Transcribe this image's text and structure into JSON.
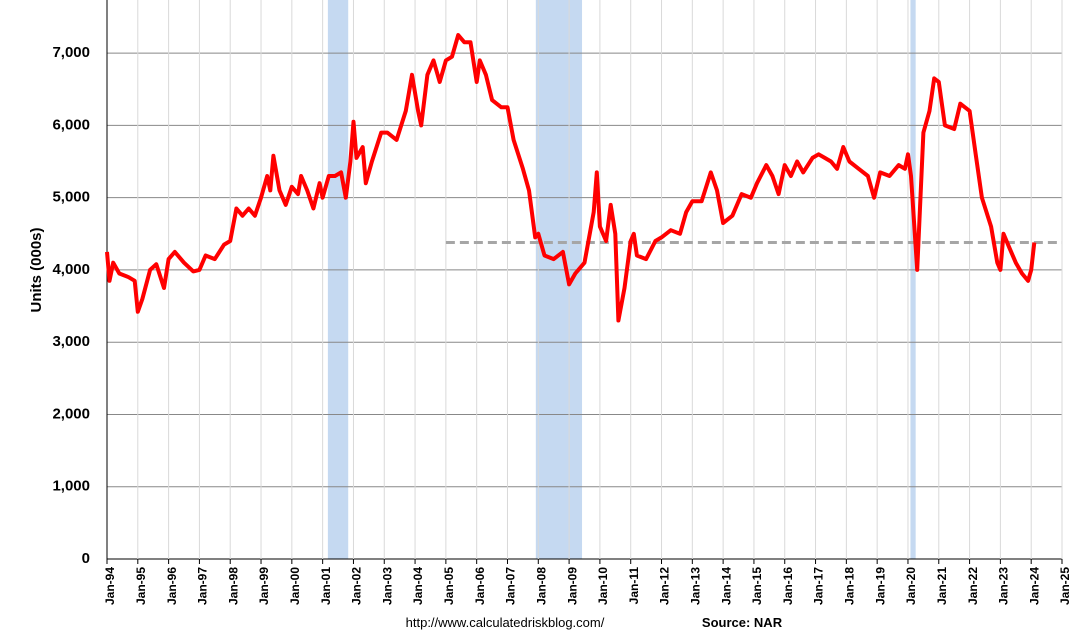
{
  "chart_data": {
    "type": "line",
    "y_label": "Units (000s)",
    "source_url": "http://www.calculatedriskblog.com/",
    "source": "Source: NAR",
    "color": "#ff0000",
    "x": [
      1994.0,
      1994.08,
      1994.2,
      1994.4,
      1994.7,
      1994.9,
      1995.0,
      1995.15,
      1995.4,
      1995.6,
      1995.85,
      1996.0,
      1996.2,
      1996.5,
      1996.8,
      1997.0,
      1997.2,
      1997.5,
      1997.8,
      1998.0,
      1998.2,
      1998.4,
      1998.6,
      1998.8,
      1999.0,
      1999.2,
      1999.3,
      1999.4,
      1999.6,
      1999.8,
      2000.0,
      2000.2,
      2000.3,
      2000.5,
      2000.7,
      2000.9,
      2001.0,
      2001.2,
      2001.4,
      2001.6,
      2001.75,
      2001.9,
      2002.0,
      2002.1,
      2002.3,
      2002.4,
      2002.6,
      2002.9,
      2003.1,
      2003.4,
      2003.7,
      2003.9,
      2004.1,
      2004.2,
      2004.4,
      2004.6,
      2004.8,
      2005.0,
      2005.2,
      2005.4,
      2005.6,
      2005.8,
      2006.0,
      2006.1,
      2006.3,
      2006.5,
      2006.8,
      2007.0,
      2007.2,
      2007.5,
      2007.7,
      2007.9,
      2008.0,
      2008.2,
      2008.5,
      2008.8,
      2009.0,
      2009.2,
      2009.5,
      2009.8,
      2009.9,
      2010.0,
      2010.2,
      2010.35,
      2010.5,
      2010.6,
      2010.8,
      2011.0,
      2011.1,
      2011.2,
      2011.5,
      2011.8,
      2012.0,
      2012.3,
      2012.6,
      2012.8,
      2013.0,
      2013.3,
      2013.6,
      2013.8,
      2014.0,
      2014.3,
      2014.6,
      2014.9,
      2015.1,
      2015.4,
      2015.6,
      2015.8,
      2016.0,
      2016.2,
      2016.4,
      2016.6,
      2016.9,
      2017.1,
      2017.3,
      2017.5,
      2017.7,
      2017.9,
      2018.1,
      2018.4,
      2018.7,
      2018.9,
      2019.1,
      2019.4,
      2019.7,
      2019.9,
      2020.0,
      2020.1,
      2020.3,
      2020.5,
      2020.7,
      2020.85,
      2021.0,
      2021.2,
      2021.5,
      2021.7,
      2022.0,
      2022.2,
      2022.4,
      2022.7,
      2022.9,
      2023.0,
      2023.1,
      2023.3,
      2023.5,
      2023.7,
      2023.9,
      2024.0,
      2024.1
    ],
    "values": [
      4250,
      3850,
      4100,
      3950,
      3900,
      3850,
      3420,
      3600,
      4000,
      4080,
      3750,
      4150,
      4250,
      4100,
      3980,
      4000,
      4200,
      4150,
      4350,
      4400,
      4850,
      4750,
      4850,
      4750,
      5000,
      5300,
      5100,
      5580,
      5100,
      4900,
      5150,
      5050,
      5300,
      5100,
      4850,
      5200,
      5000,
      5300,
      5300,
      5350,
      5000,
      5500,
      6050,
      5550,
      5700,
      5200,
      5500,
      5900,
      5900,
      5800,
      6200,
      6700,
      6200,
      6000,
      6700,
      6900,
      6600,
      6900,
      6950,
      7250,
      7150,
      7150,
      6600,
      6900,
      6700,
      6350,
      6250,
      6250,
      5800,
      5400,
      5100,
      4450,
      4500,
      4200,
      4150,
      4250,
      3800,
      3950,
      4100,
      4800,
      5350,
      4600,
      4400,
      4900,
      4500,
      3300,
      3750,
      4400,
      4500,
      4200,
      4150,
      4400,
      4450,
      4550,
      4500,
      4800,
      4950,
      4950,
      5350,
      5100,
      4650,
      4750,
      5050,
      5000,
      5200,
      5450,
      5300,
      5050,
      5450,
      5300,
      5500,
      5350,
      5550,
      5600,
      5550,
      5500,
      5400,
      5700,
      5500,
      5400,
      5300,
      5000,
      5350,
      5300,
      5450,
      5400,
      5600,
      5300,
      4000,
      5900,
      6200,
      6650,
      6600,
      6000,
      5950,
      6300,
      6200,
      5600,
      5000,
      4600,
      4100,
      4000,
      4500,
      4300,
      4100,
      3950,
      3850,
      4000,
      4380
    ],
    "recessions": [
      [
        2001.17,
        2001.83
      ],
      [
        2007.92,
        2009.42
      ],
      [
        2020.08,
        2020.25
      ]
    ],
    "reference_line": {
      "value": 4380,
      "x_start": 2005
    },
    "xlim": [
      1994,
      2025
    ],
    "xticks": [
      {
        "value": 1994,
        "label": "Jan-94"
      },
      {
        "value": 1995,
        "label": "Jan-95"
      },
      {
        "value": 1996,
        "label": "Jan-96"
      },
      {
        "value": 1997,
        "label": "Jan-97"
      },
      {
        "value": 1998,
        "label": "Jan-98"
      },
      {
        "value": 1999,
        "label": "Jan-99"
      },
      {
        "value": 2000,
        "label": "Jan-00"
      },
      {
        "value": 2001,
        "label": "Jan-01"
      },
      {
        "value": 2002,
        "label": "Jan-02"
      },
      {
        "value": 2003,
        "label": "Jan-03"
      },
      {
        "value": 2004,
        "label": "Jan-04"
      },
      {
        "value": 2005,
        "label": "Jan-05"
      },
      {
        "value": 2006,
        "label": "Jan-06"
      },
      {
        "value": 2007,
        "label": "Jan-07"
      },
      {
        "value": 2008,
        "label": "Jan-08"
      },
      {
        "value": 2009,
        "label": "Jan-09"
      },
      {
        "value": 2010,
        "label": "Jan-10"
      },
      {
        "value": 2011,
        "label": "Jan-11"
      },
      {
        "value": 2012,
        "label": "Jan-12"
      },
      {
        "value": 2013,
        "label": "Jan-13"
      },
      {
        "value": 2014,
        "label": "Jan-14"
      },
      {
        "value": 2015,
        "label": "Jan-15"
      },
      {
        "value": 2016,
        "label": "Jan-16"
      },
      {
        "value": 2017,
        "label": "Jan-17"
      },
      {
        "value": 2018,
        "label": "Jan-18"
      },
      {
        "value": 2019,
        "label": "Jan-19"
      },
      {
        "value": 2020,
        "label": "Jan-20"
      },
      {
        "value": 2021,
        "label": "Jan-21"
      },
      {
        "value": 2022,
        "label": "Jan-22"
      },
      {
        "value": 2023,
        "label": "Jan-23"
      },
      {
        "value": 2024,
        "label": "Jan-24"
      },
      {
        "value": 2025,
        "label": "Jan-25"
      }
    ],
    "ylim": [
      0,
      7500
    ],
    "yticks": [
      0,
      {
        "value": 1000,
        "label": "1,000"
      },
      {
        "value": 2000,
        "label": "2,000"
      },
      {
        "value": 3000,
        "label": "3,000"
      },
      {
        "value": 4000,
        "label": "4,000"
      },
      {
        "value": 5000,
        "label": "5,000"
      },
      {
        "value": 6000,
        "label": "6,000"
      },
      {
        "value": 7000,
        "label": "7,000"
      }
    ],
    "grid": true
  }
}
